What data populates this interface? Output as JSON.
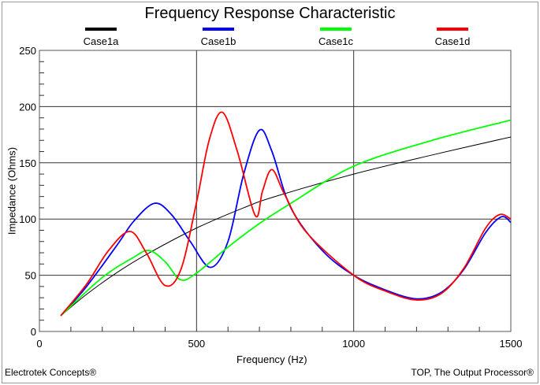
{
  "chart_data": {
    "type": "line",
    "title": "Frequency Response Characteristic",
    "xlabel": "Frequency (Hz)",
    "ylabel": "Impedance (Ohms)",
    "xlim": [
      0,
      1500
    ],
    "ylim": [
      0,
      250
    ],
    "xticks": [
      0,
      500,
      1000,
      1500
    ],
    "yticks": [
      0,
      50,
      100,
      150,
      200,
      250
    ],
    "grid": true,
    "legend": "top",
    "series": [
      {
        "name": "Case1a",
        "color": "#000000",
        "points": [
          [
            68,
            14
          ],
          [
            150,
            33
          ],
          [
            250,
            53
          ],
          [
            350,
            70
          ],
          [
            500,
            92
          ],
          [
            650,
            110
          ],
          [
            750,
            120
          ],
          [
            1000,
            140
          ],
          [
            1250,
            157
          ],
          [
            1500,
            173
          ]
        ]
      },
      {
        "name": "Case1b",
        "color": "#0000ff",
        "points": [
          [
            68,
            14
          ],
          [
            150,
            40
          ],
          [
            250,
            78
          ],
          [
            300,
            98
          ],
          [
            366,
            114
          ],
          [
            420,
            104
          ],
          [
            480,
            80
          ],
          [
            544,
            57
          ],
          [
            600,
            80
          ],
          [
            650,
            140
          ],
          [
            700,
            179
          ],
          [
            740,
            160
          ],
          [
            800,
            110
          ],
          [
            900,
            72
          ],
          [
            1000,
            50
          ],
          [
            1100,
            37
          ],
          [
            1200,
            29
          ],
          [
            1280,
            35
          ],
          [
            1350,
            55
          ],
          [
            1420,
            88
          ],
          [
            1470,
            102
          ],
          [
            1500,
            97
          ]
        ]
      },
      {
        "name": "Case1c",
        "color": "#00ff00",
        "points": [
          [
            68,
            14
          ],
          [
            200,
            48
          ],
          [
            300,
            66
          ],
          [
            349,
            72
          ],
          [
            400,
            62
          ],
          [
            449,
            46
          ],
          [
            500,
            52
          ],
          [
            600,
            75
          ],
          [
            700,
            96
          ],
          [
            800,
            114
          ],
          [
            1000,
            147
          ],
          [
            1250,
            170
          ],
          [
            1500,
            188
          ]
        ]
      },
      {
        "name": "Case1d",
        "color": "#ff0000",
        "points": [
          [
            68,
            14
          ],
          [
            150,
            42
          ],
          [
            220,
            72
          ],
          [
            288,
            89
          ],
          [
            340,
            70
          ],
          [
            399,
            41
          ],
          [
            450,
            55
          ],
          [
            500,
            115
          ],
          [
            540,
            170
          ],
          [
            582,
            195
          ],
          [
            630,
            160
          ],
          [
            687,
            103
          ],
          [
            710,
            125
          ],
          [
            740,
            144
          ],
          [
            780,
            122
          ],
          [
            850,
            88
          ],
          [
            1000,
            50
          ],
          [
            1100,
            36
          ],
          [
            1200,
            28
          ],
          [
            1280,
            34
          ],
          [
            1350,
            56
          ],
          [
            1420,
            92
          ],
          [
            1465,
            104
          ],
          [
            1500,
            100
          ]
        ]
      }
    ]
  },
  "footer": {
    "left": "Electrotek Concepts®",
    "right": "TOP, The Output Processor®"
  }
}
